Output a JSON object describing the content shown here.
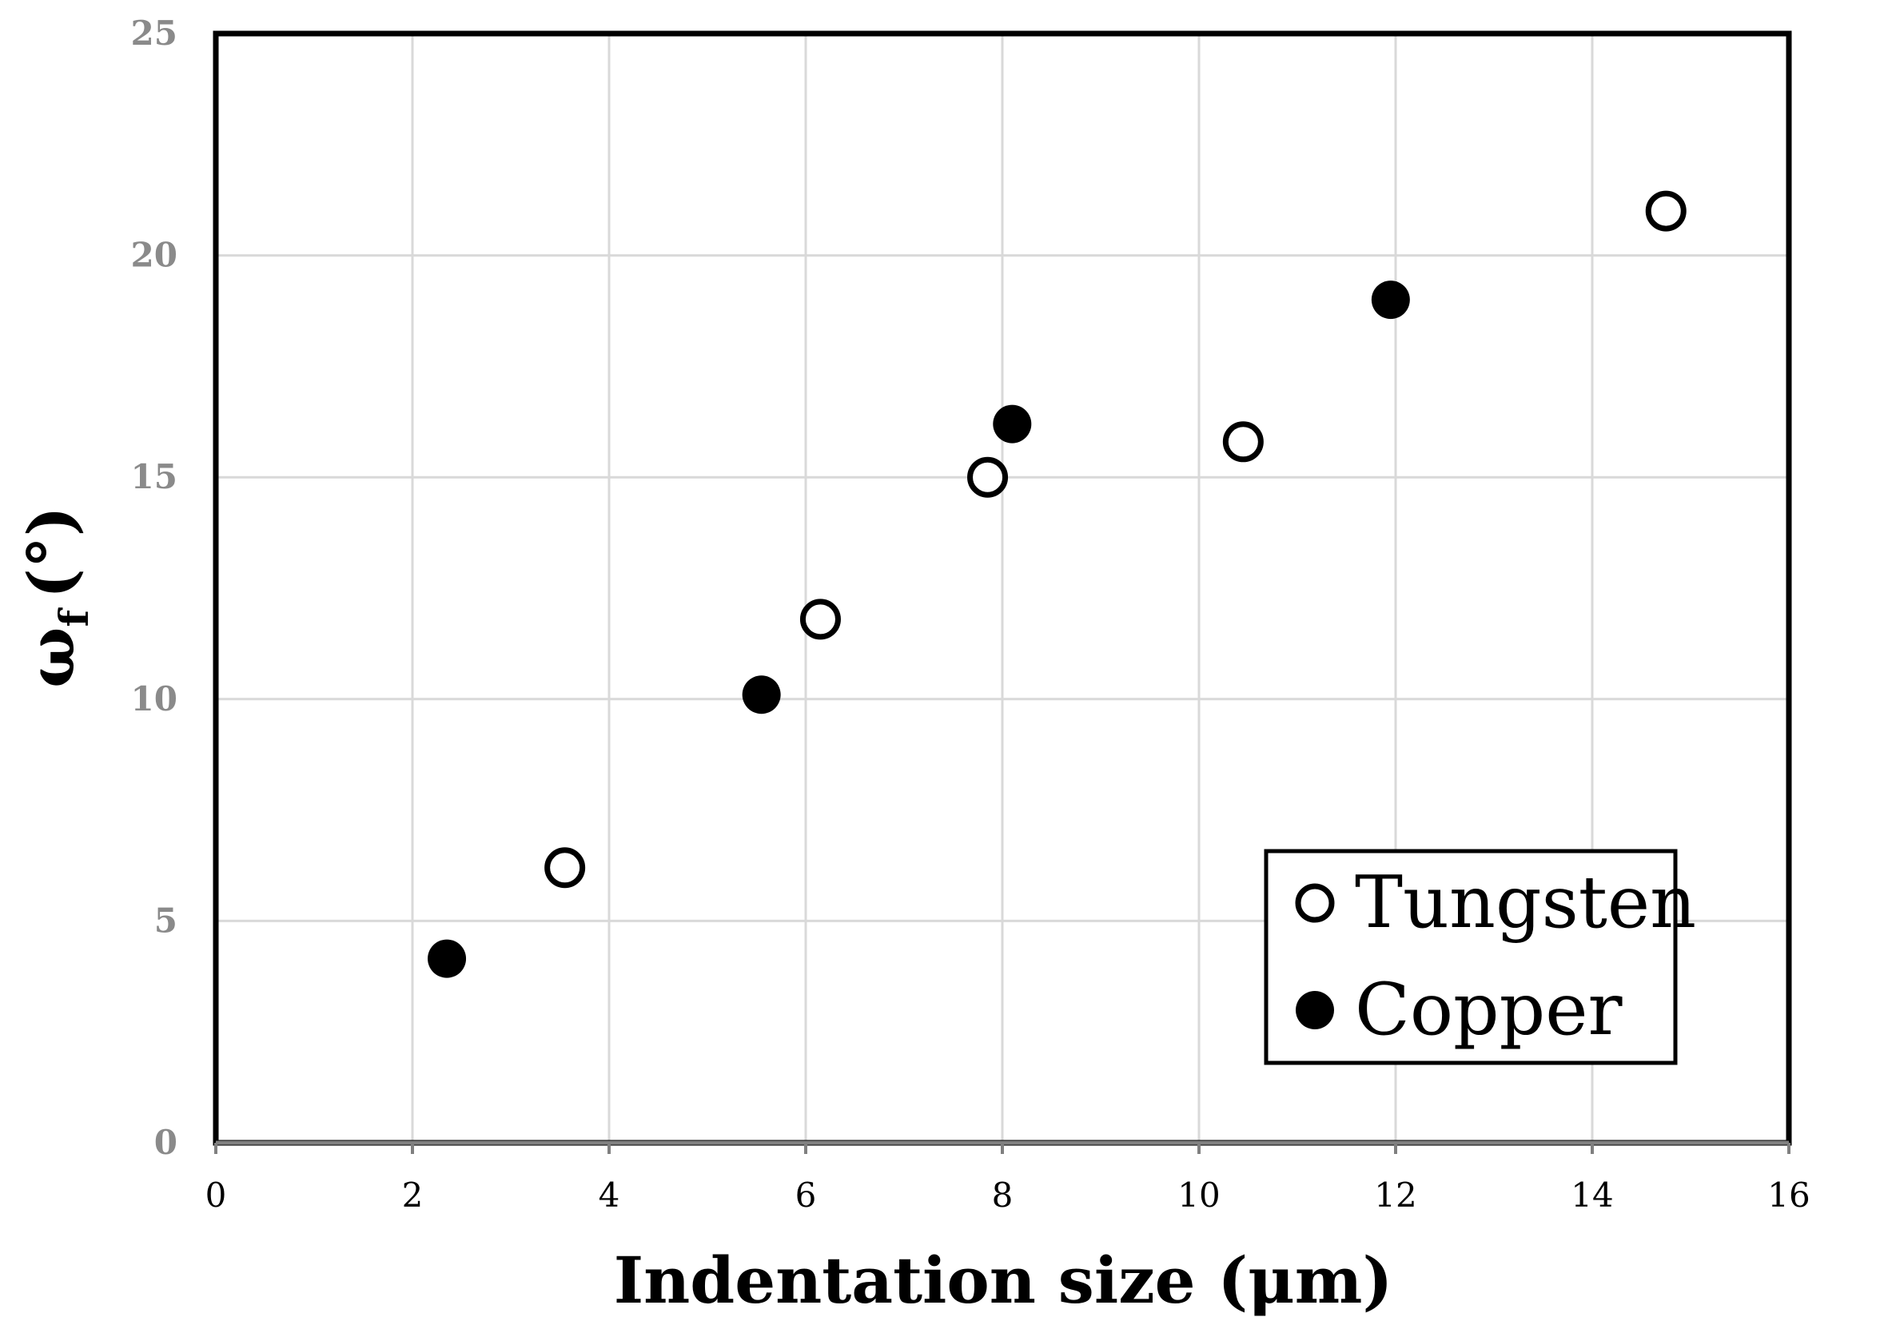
{
  "chart_data": {
    "type": "scatter",
    "title": "",
    "xlabel": "Indentation size (μm)",
    "ylabel_main": "ω",
    "ylabel_sub": "f",
    "ylabel_unit": "(°)",
    "xlim": [
      0,
      16
    ],
    "ylim": [
      0,
      25
    ],
    "x_ticks": [
      0,
      2,
      4,
      6,
      8,
      10,
      12,
      14,
      16
    ],
    "y_ticks": [
      0,
      5,
      10,
      15,
      20,
      25
    ],
    "grid": true,
    "legend_position": "bottom-right",
    "series": [
      {
        "name": "Tungsten",
        "marker": "open-circle",
        "color": "#000000",
        "x": [
          3.55,
          6.15,
          7.85,
          10.45,
          14.75
        ],
        "y": [
          6.2,
          11.8,
          15.0,
          15.8,
          21.0
        ]
      },
      {
        "name": "Copper",
        "marker": "filled-circle",
        "color": "#000000",
        "x": [
          2.35,
          5.55,
          8.1,
          11.95
        ],
        "y": [
          4.15,
          10.1,
          16.2,
          19.0
        ]
      }
    ]
  }
}
